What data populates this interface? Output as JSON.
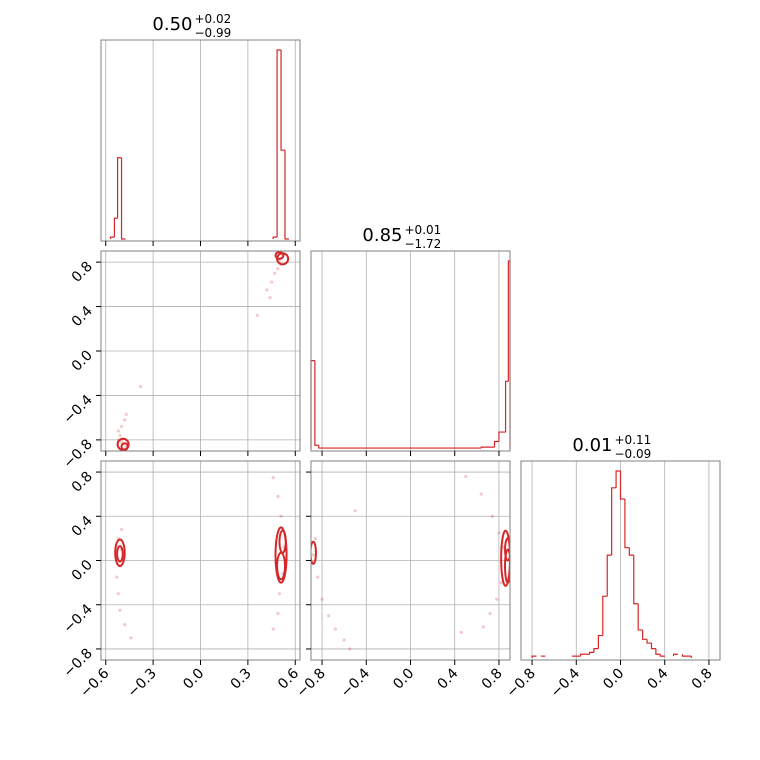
{
  "colors": {
    "series": "#d62728",
    "grid": "#b0b0b0",
    "frame": "#808080"
  },
  "chart_data": [
    {
      "type": "histogram",
      "panel": "p0",
      "parameter_index": 0,
      "title_value": "0.50",
      "title_plus": "+0.02",
      "title_minus": "−0.99",
      "x_range": [
        -0.63,
        0.63
      ],
      "x_ticks": [
        "−0.6",
        "−0.3",
        "0.0",
        "0.3",
        "0.6"
      ],
      "x_tick_values": [
        -0.6,
        -0.3,
        0.0,
        0.3,
        0.6
      ],
      "grid": true,
      "bins": [
        {
          "x0": -0.57,
          "x1": -0.545,
          "h": 0.01
        },
        {
          "x0": -0.545,
          "x1": -0.525,
          "h": 0.11
        },
        {
          "x0": -0.525,
          "x1": -0.5,
          "h": 0.43
        },
        {
          "x0": -0.5,
          "x1": -0.475,
          "h": 0.0
        },
        {
          "x0": 0.46,
          "x1": 0.485,
          "h": 0.01
        },
        {
          "x0": 0.485,
          "x1": 0.51,
          "h": 1.0
        },
        {
          "x0": 0.51,
          "x1": 0.535,
          "h": 0.47
        },
        {
          "x0": 0.535,
          "x1": 0.56,
          "h": 0.0
        }
      ]
    },
    {
      "type": "histogram",
      "panel": "p1",
      "parameter_index": 1,
      "title_value": "0.85",
      "title_plus": "+0.01",
      "title_minus": "−1.72",
      "x_range": [
        -0.9,
        0.9
      ],
      "x_ticks": [
        "−0.8",
        "−0.4",
        "0.0",
        "0.4",
        "0.8"
      ],
      "x_tick_values": [
        -0.8,
        -0.4,
        0.0,
        0.4,
        0.8
      ],
      "grid": true,
      "bins": [
        {
          "x0": -0.9,
          "x1": -0.865,
          "h": 0.47
        },
        {
          "x0": -0.865,
          "x1": -0.83,
          "h": 0.02
        },
        {
          "x0": -0.83,
          "x1": 0.64,
          "h": 0.005
        },
        {
          "x0": 0.64,
          "x1": 0.76,
          "h": 0.01
        },
        {
          "x0": 0.76,
          "x1": 0.8,
          "h": 0.04
        },
        {
          "x0": 0.8,
          "x1": 0.86,
          "h": 0.09
        },
        {
          "x0": 0.86,
          "x1": 0.885,
          "h": 0.36
        },
        {
          "x0": 0.885,
          "x1": 0.9,
          "h": 1.0
        }
      ]
    },
    {
      "type": "histogram",
      "panel": "p2",
      "parameter_index": 2,
      "title_value": "0.01",
      "title_plus": "+0.11",
      "title_minus": "−0.09",
      "x_range": [
        -0.9,
        0.9
      ],
      "x_ticks": [
        "−0.8",
        "−0.4",
        "0.0",
        "0.4",
        "0.8"
      ],
      "x_tick_values": [
        -0.8,
        -0.4,
        0.0,
        0.4,
        0.8
      ],
      "grid": true,
      "bins": [
        {
          "x0": -0.8,
          "x1": -0.76,
          "h": 0.01
        },
        {
          "x0": -0.72,
          "x1": -0.68,
          "h": 0.01
        },
        {
          "x0": -0.44,
          "x1": -0.36,
          "h": 0.01
        },
        {
          "x0": -0.36,
          "x1": -0.28,
          "h": 0.02
        },
        {
          "x0": -0.28,
          "x1": -0.24,
          "h": 0.03
        },
        {
          "x0": -0.24,
          "x1": -0.2,
          "h": 0.05
        },
        {
          "x0": -0.2,
          "x1": -0.16,
          "h": 0.12
        },
        {
          "x0": -0.16,
          "x1": -0.12,
          "h": 0.33
        },
        {
          "x0": -0.12,
          "x1": -0.08,
          "h": 0.55
        },
        {
          "x0": -0.08,
          "x1": -0.04,
          "h": 0.91
        },
        {
          "x0": -0.04,
          "x1": 0.0,
          "h": 1.0
        },
        {
          "x0": 0.0,
          "x1": 0.04,
          "h": 0.85
        },
        {
          "x0": 0.04,
          "x1": 0.08,
          "h": 0.59
        },
        {
          "x0": 0.08,
          "x1": 0.12,
          "h": 0.55
        },
        {
          "x0": 0.12,
          "x1": 0.16,
          "h": 0.29
        },
        {
          "x0": 0.16,
          "x1": 0.2,
          "h": 0.15
        },
        {
          "x0": 0.2,
          "x1": 0.24,
          "h": 0.1
        },
        {
          "x0": 0.24,
          "x1": 0.28,
          "h": 0.08
        },
        {
          "x0": 0.28,
          "x1": 0.32,
          "h": 0.05
        },
        {
          "x0": 0.32,
          "x1": 0.36,
          "h": 0.02
        },
        {
          "x0": 0.36,
          "x1": 0.4,
          "h": 0.01
        },
        {
          "x0": 0.48,
          "x1": 0.52,
          "h": 0.02
        },
        {
          "x0": 0.56,
          "x1": 0.64,
          "h": 0.01
        }
      ]
    },
    {
      "type": "scatter",
      "panel": "p10",
      "x_param": 0,
      "y_param": 1,
      "x_range": [
        -0.63,
        0.63
      ],
      "y_range": [
        -0.9,
        0.9
      ],
      "y_ticks": [
        "−0.8",
        "−0.4",
        "0.0",
        "0.4",
        "0.8"
      ],
      "y_tick_values": [
        -0.8,
        -0.4,
        0.0,
        0.4,
        0.8
      ],
      "grid": true,
      "points": [
        [
          -0.52,
          -0.8
        ],
        [
          -0.51,
          -0.76
        ],
        [
          -0.52,
          -0.72
        ],
        [
          -0.5,
          -0.68
        ],
        [
          -0.48,
          -0.62
        ],
        [
          -0.47,
          -0.57
        ],
        [
          -0.38,
          -0.32
        ],
        [
          -0.49,
          -0.84
        ],
        [
          -0.47,
          -0.86
        ],
        [
          -0.5,
          -0.82
        ],
        [
          0.5,
          0.82
        ],
        [
          0.51,
          0.78
        ],
        [
          0.49,
          0.74
        ],
        [
          0.47,
          0.7
        ],
        [
          0.45,
          0.62
        ],
        [
          0.42,
          0.55
        ],
        [
          0.44,
          0.48
        ],
        [
          0.36,
          0.32
        ],
        [
          0.52,
          0.86
        ],
        [
          0.48,
          0.88
        ]
      ],
      "contours": [
        {
          "cx": -0.49,
          "cy": -0.84,
          "rx": 0.035,
          "ry": 0.05
        },
        {
          "cx": -0.48,
          "cy": -0.86,
          "rx": 0.02,
          "ry": 0.03
        },
        {
          "cx": 0.52,
          "cy": 0.83,
          "rx": 0.035,
          "ry": 0.05
        },
        {
          "cx": 0.5,
          "cy": 0.86,
          "rx": 0.025,
          "ry": 0.03
        }
      ]
    },
    {
      "type": "scatter",
      "panel": "p20",
      "x_param": 0,
      "y_param": 2,
      "x_range": [
        -0.63,
        0.63
      ],
      "y_range": [
        -0.9,
        0.9
      ],
      "x_ticks": [
        "−0.6",
        "−0.3",
        "0.0",
        "0.3",
        "0.6"
      ],
      "x_tick_values": [
        -0.6,
        -0.3,
        0.0,
        0.3,
        0.6
      ],
      "y_ticks": [
        "−0.8",
        "−0.4",
        "0.0",
        "0.4",
        "0.8"
      ],
      "y_tick_values": [
        -0.8,
        -0.4,
        0.0,
        0.4,
        0.8
      ],
      "grid": true,
      "points": [
        [
          -0.5,
          0.28
        ],
        [
          -0.52,
          0.2
        ],
        [
          -0.53,
          -0.15
        ],
        [
          -0.52,
          -0.3
        ],
        [
          -0.51,
          -0.45
        ],
        [
          -0.48,
          -0.58
        ],
        [
          -0.44,
          -0.7
        ],
        [
          -0.5,
          0.1
        ],
        [
          -0.51,
          -0.05
        ],
        [
          0.46,
          0.75
        ],
        [
          0.49,
          0.58
        ],
        [
          0.51,
          0.4
        ],
        [
          0.52,
          0.28
        ],
        [
          0.5,
          -0.3
        ],
        [
          0.49,
          -0.48
        ],
        [
          0.46,
          -0.62
        ],
        [
          0.53,
          0.12
        ],
        [
          0.52,
          -0.12
        ]
      ],
      "contours": [
        {
          "cx": -0.51,
          "cy": 0.07,
          "rx": 0.03,
          "ry": 0.12
        },
        {
          "cx": -0.51,
          "cy": 0.06,
          "rx": 0.018,
          "ry": 0.07
        },
        {
          "cx": 0.51,
          "cy": 0.05,
          "rx": 0.035,
          "ry": 0.25
        },
        {
          "cx": 0.51,
          "cy": -0.05,
          "rx": 0.025,
          "ry": 0.12
        },
        {
          "cx": 0.52,
          "cy": 0.17,
          "rx": 0.02,
          "ry": 0.1
        }
      ]
    },
    {
      "type": "scatter",
      "panel": "p21",
      "x_param": 1,
      "y_param": 2,
      "x_range": [
        -0.9,
        0.9
      ],
      "y_range": [
        -0.9,
        0.9
      ],
      "x_ticks": [
        "−0.8",
        "−0.4",
        "0.0",
        "0.4",
        "0.8"
      ],
      "x_tick_values": [
        -0.8,
        -0.4,
        0.0,
        0.4,
        0.8
      ],
      "grid": true,
      "points": [
        [
          -0.86,
          0.2
        ],
        [
          -0.84,
          -0.15
        ],
        [
          -0.8,
          -0.35
        ],
        [
          -0.74,
          -0.5
        ],
        [
          -0.68,
          -0.62
        ],
        [
          -0.6,
          -0.72
        ],
        [
          -0.55,
          -0.8
        ],
        [
          -0.88,
          0.05
        ],
        [
          -0.5,
          0.45
        ],
        [
          0.5,
          0.76
        ],
        [
          0.64,
          0.6
        ],
        [
          0.74,
          0.4
        ],
        [
          0.8,
          0.25
        ],
        [
          0.84,
          0.12
        ],
        [
          0.82,
          -0.2
        ],
        [
          0.78,
          -0.35
        ],
        [
          0.72,
          -0.48
        ],
        [
          0.66,
          -0.6
        ],
        [
          0.46,
          -0.65
        ]
      ],
      "contours": [
        {
          "cx": -0.88,
          "cy": 0.07,
          "rx": 0.025,
          "ry": 0.1
        },
        {
          "cx": 0.88,
          "cy": 0.1,
          "rx": 0.025,
          "ry": 0.1
        },
        {
          "cx": 0.88,
          "cy": -0.05,
          "rx": 0.025,
          "ry": 0.15
        },
        {
          "cx": 0.86,
          "cy": 0.02,
          "rx": 0.04,
          "ry": 0.25
        }
      ]
    }
  ]
}
